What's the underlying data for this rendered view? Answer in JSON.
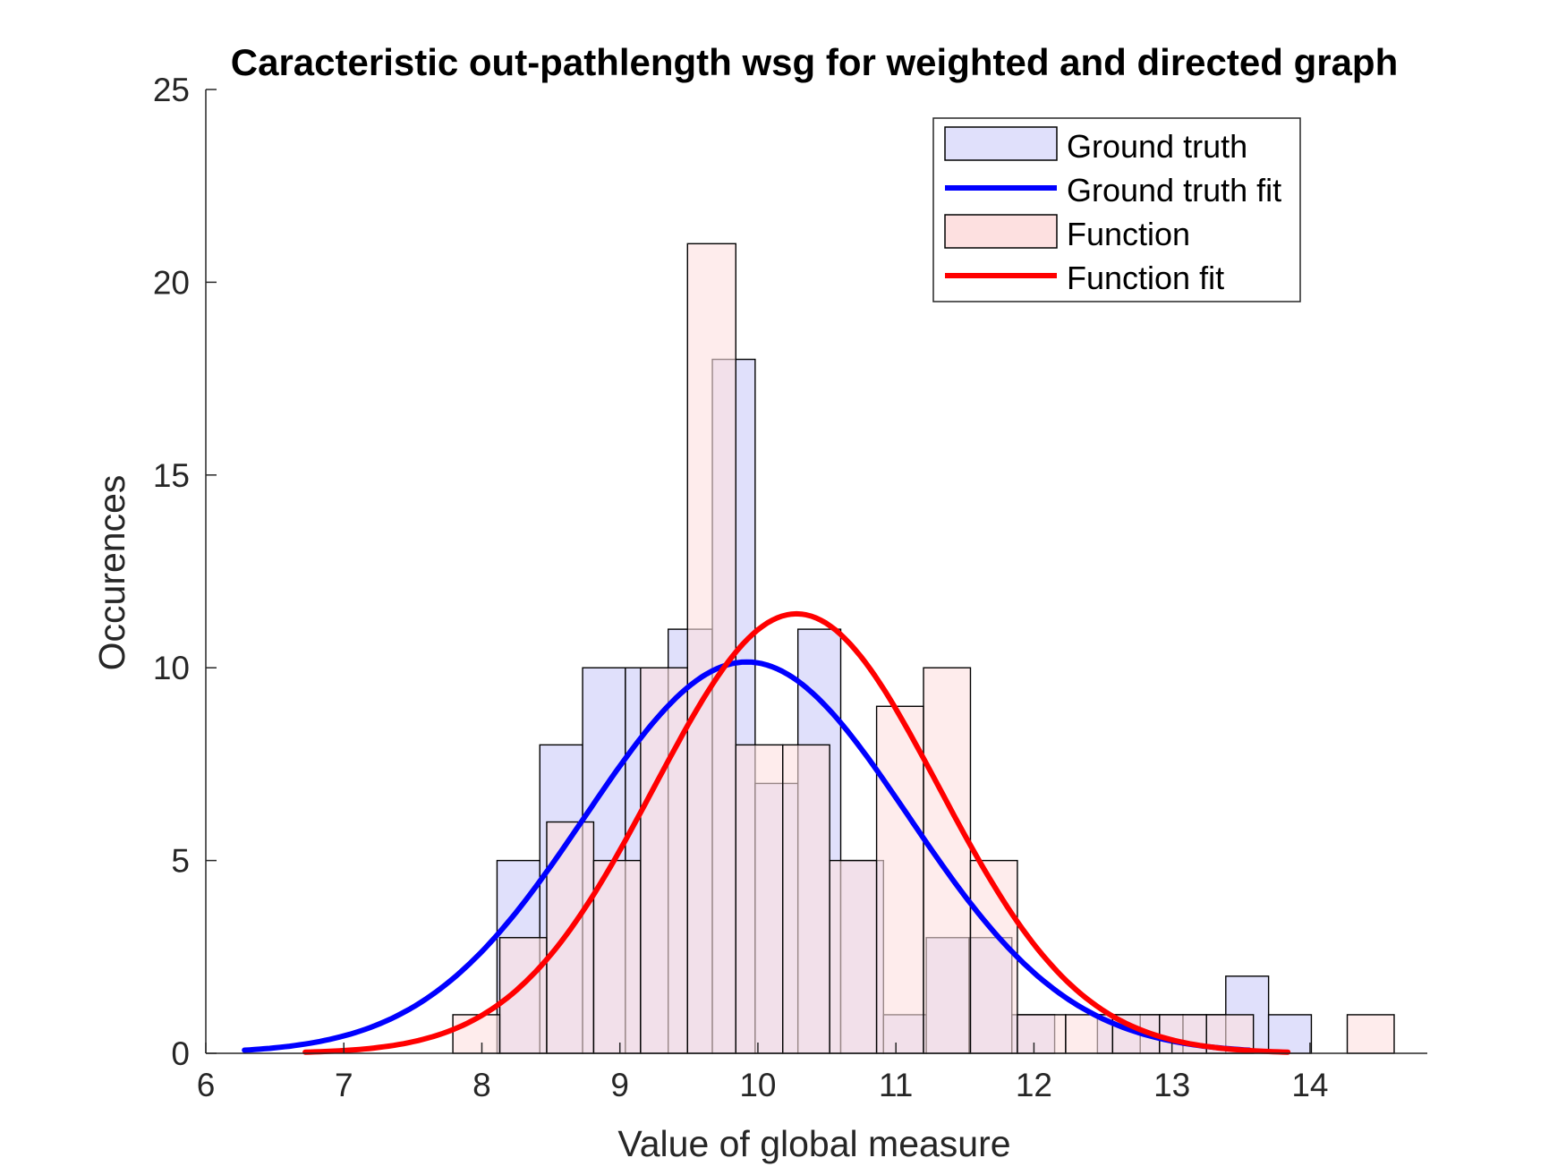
{
  "chart_data": {
    "type": "bar",
    "title": "Caracteristic out-pathlength wsg for weighted and directed graph",
    "xlabel": "Value of global measure",
    "ylabel": "Occurences",
    "xlim": [
      6,
      14.85
    ],
    "ylim": [
      0,
      25
    ],
    "xticks": [
      "6",
      "7",
      "8",
      "9",
      "10",
      "11",
      "12",
      "13",
      "14"
    ],
    "yticks": [
      "0",
      "5",
      "10",
      "15",
      "20",
      "25"
    ],
    "grid": false,
    "legend_position": "top-right",
    "series": [
      {
        "name": "Ground truth",
        "kind": "histogram",
        "color": "#e0e0fb",
        "bins": [
          {
            "x0": 8.11,
            "x1": 8.42,
            "count": 5
          },
          {
            "x0": 8.42,
            "x1": 8.73,
            "count": 8
          },
          {
            "x0": 8.73,
            "x1": 9.04,
            "count": 10
          },
          {
            "x0": 9.04,
            "x1": 9.35,
            "count": 10
          },
          {
            "x0": 9.35,
            "x1": 9.67,
            "count": 11
          },
          {
            "x0": 9.67,
            "x1": 9.98,
            "count": 18
          },
          {
            "x0": 9.98,
            "x1": 10.29,
            "count": 7
          },
          {
            "x0": 10.29,
            "x1": 10.6,
            "count": 11
          },
          {
            "x0": 10.6,
            "x1": 10.91,
            "count": 5
          },
          {
            "x0": 10.91,
            "x1": 11.22,
            "count": 1
          },
          {
            "x0": 11.22,
            "x1": 11.53,
            "count": 3
          },
          {
            "x0": 11.53,
            "x1": 11.84,
            "count": 3
          },
          {
            "x0": 11.84,
            "x1": 12.15,
            "count": 1
          },
          {
            "x0": 12.15,
            "x1": 12.46,
            "count": 0
          },
          {
            "x0": 12.46,
            "x1": 12.77,
            "count": 1
          },
          {
            "x0": 12.77,
            "x1": 13.08,
            "count": 1
          },
          {
            "x0": 13.08,
            "x1": 13.39,
            "count": 1
          },
          {
            "x0": 13.39,
            "x1": 13.7,
            "count": 2
          },
          {
            "x0": 13.7,
            "x1": 14.01,
            "count": 1
          }
        ]
      },
      {
        "name": "Function",
        "kind": "histogram",
        "color": "#fde0e0",
        "bins": [
          {
            "x0": 7.79,
            "x1": 8.13,
            "count": 1
          },
          {
            "x0": 8.13,
            "x1": 8.47,
            "count": 3
          },
          {
            "x0": 8.47,
            "x1": 8.81,
            "count": 6
          },
          {
            "x0": 8.81,
            "x1": 9.15,
            "count": 5
          },
          {
            "x0": 9.15,
            "x1": 9.49,
            "count": 10
          },
          {
            "x0": 9.49,
            "x1": 9.84,
            "count": 21
          },
          {
            "x0": 9.84,
            "x1": 10.18,
            "count": 8
          },
          {
            "x0": 10.18,
            "x1": 10.52,
            "count": 8
          },
          {
            "x0": 10.52,
            "x1": 10.86,
            "count": 5
          },
          {
            "x0": 10.86,
            "x1": 11.2,
            "count": 9
          },
          {
            "x0": 11.2,
            "x1": 11.54,
            "count": 10
          },
          {
            "x0": 11.54,
            "x1": 11.88,
            "count": 5
          },
          {
            "x0": 11.88,
            "x1": 12.23,
            "count": 1
          },
          {
            "x0": 12.23,
            "x1": 12.57,
            "count": 1
          },
          {
            "x0": 12.57,
            "x1": 12.91,
            "count": 1
          },
          {
            "x0": 12.91,
            "x1": 13.25,
            "count": 1
          },
          {
            "x0": 13.25,
            "x1": 13.59,
            "count": 1
          },
          {
            "x0": 13.59,
            "x1": 13.93,
            "count": 0
          },
          {
            "x0": 13.93,
            "x1": 14.27,
            "count": 0
          },
          {
            "x0": 14.27,
            "x1": 14.61,
            "count": 1
          }
        ]
      },
      {
        "name": "Ground truth fit",
        "kind": "normal-fit",
        "color": "#0000ff",
        "mean": 9.92,
        "peak": 10.15,
        "sigma": 1.17,
        "x_range": [
          6.28,
          13.56
        ]
      },
      {
        "name": "Function fit",
        "kind": "normal-fit",
        "color": "#ff0000",
        "mean": 10.28,
        "peak": 11.4,
        "sigma": 1.03,
        "x_range": [
          6.72,
          13.84
        ]
      }
    ]
  }
}
